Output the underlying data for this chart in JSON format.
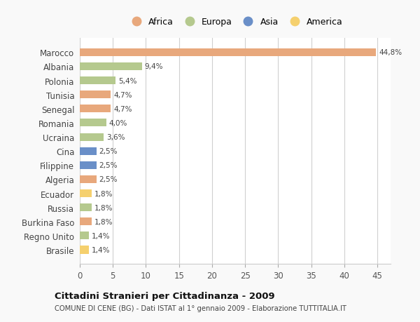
{
  "countries": [
    "Marocco",
    "Albania",
    "Polonia",
    "Tunisia",
    "Senegal",
    "Romania",
    "Ucraina",
    "Cina",
    "Filippine",
    "Algeria",
    "Ecuador",
    "Russia",
    "Burkina Faso",
    "Regno Unito",
    "Brasile"
  ],
  "values": [
    44.8,
    9.4,
    5.4,
    4.7,
    4.7,
    4.0,
    3.6,
    2.5,
    2.5,
    2.5,
    1.8,
    1.8,
    1.8,
    1.4,
    1.4
  ],
  "labels": [
    "44,8%",
    "9,4%",
    "5,4%",
    "4,7%",
    "4,7%",
    "4,0%",
    "3,6%",
    "2,5%",
    "2,5%",
    "2,5%",
    "1,8%",
    "1,8%",
    "1,8%",
    "1,4%",
    "1,4%"
  ],
  "continents": [
    "Africa",
    "Europa",
    "Europa",
    "Africa",
    "Africa",
    "Europa",
    "Europa",
    "Asia",
    "Asia",
    "Africa",
    "America",
    "Europa",
    "Africa",
    "Europa",
    "America"
  ],
  "colors": {
    "Africa": "#E8A87C",
    "Europa": "#B5C98E",
    "Asia": "#6A8FC8",
    "America": "#F5D06E"
  },
  "title": "Cittadini Stranieri per Cittadinanza - 2009",
  "subtitle": "COMUNE DI CENE (BG) - Dati ISTAT al 1° gennaio 2009 - Elaborazione TUTTITALIA.IT",
  "xlim": [
    0,
    47
  ],
  "background_color": "#f9f9f9",
  "plot_bg_color": "#ffffff",
  "grid_color": "#d0d0d0",
  "legend_order": [
    "Africa",
    "Europa",
    "Asia",
    "America"
  ]
}
